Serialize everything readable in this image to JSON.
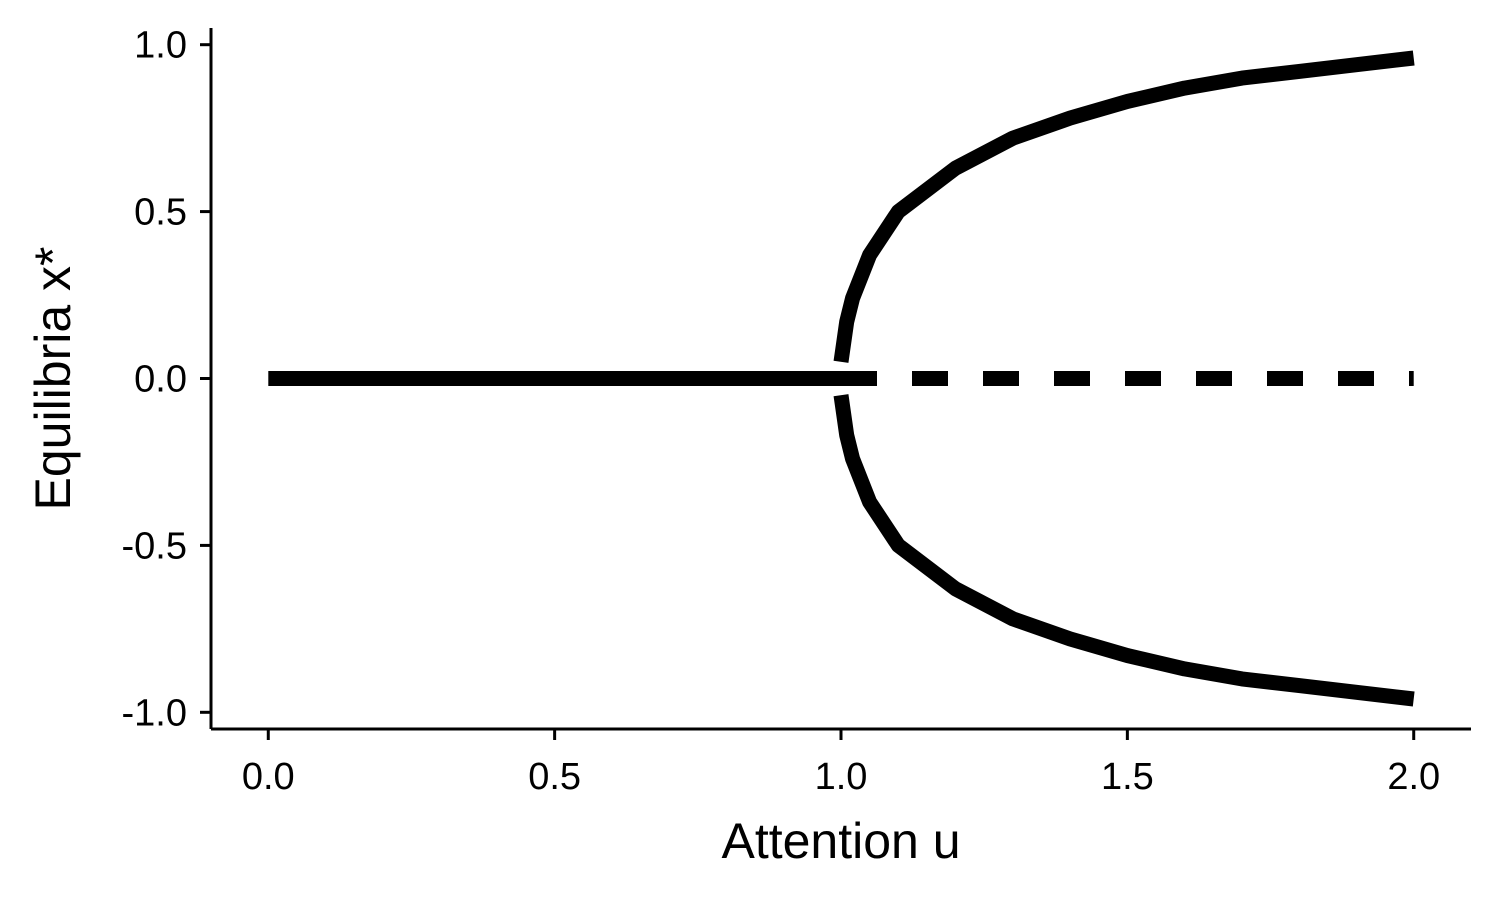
{
  "chart_data": {
    "type": "line",
    "title": "",
    "xlabel": "Attention u",
    "ylabel": "Equilibria x*",
    "xlim": [
      -0.1,
      2.1
    ],
    "ylim": [
      -1.05,
      1.05
    ],
    "xticks": [
      0.0,
      0.5,
      1.0,
      1.5,
      2.0
    ],
    "xtick_labels": [
      "0.0",
      "0.5",
      "1.0",
      "1.5",
      "2.0"
    ],
    "yticks": [
      -1.0,
      -0.5,
      0.0,
      0.5,
      1.0
    ],
    "ytick_labels": [
      "-1.0",
      "-0.5",
      "0.0",
      "0.5",
      "1.0"
    ],
    "grid": false,
    "legend": "none",
    "line_color": "#000000",
    "series": [
      {
        "style": "solid",
        "x": [
          0.0,
          1.0
        ],
        "y": [
          0.0,
          0.0
        ]
      },
      {
        "style": "dashed",
        "x": [
          1.0,
          2.0
        ],
        "y": [
          0.0,
          0.0
        ]
      },
      {
        "style": "solid",
        "x": [
          1.0,
          1.01,
          1.02,
          1.05,
          1.1,
          1.2,
          1.3,
          1.4,
          1.5,
          1.6,
          1.7,
          1.8,
          1.9,
          2.0
        ],
        "y": [
          0.05,
          0.17,
          0.24,
          0.37,
          0.5,
          0.63,
          0.72,
          0.78,
          0.83,
          0.87,
          0.9,
          0.92,
          0.94,
          0.96
        ]
      },
      {
        "style": "solid",
        "x": [
          1.0,
          1.01,
          1.02,
          1.05,
          1.1,
          1.2,
          1.3,
          1.4,
          1.5,
          1.6,
          1.7,
          1.8,
          1.9,
          2.0
        ],
        "y": [
          -0.05,
          -0.17,
          -0.24,
          -0.37,
          -0.5,
          -0.63,
          -0.72,
          -0.78,
          -0.83,
          -0.87,
          -0.9,
          -0.92,
          -0.94,
          -0.96
        ]
      }
    ]
  }
}
